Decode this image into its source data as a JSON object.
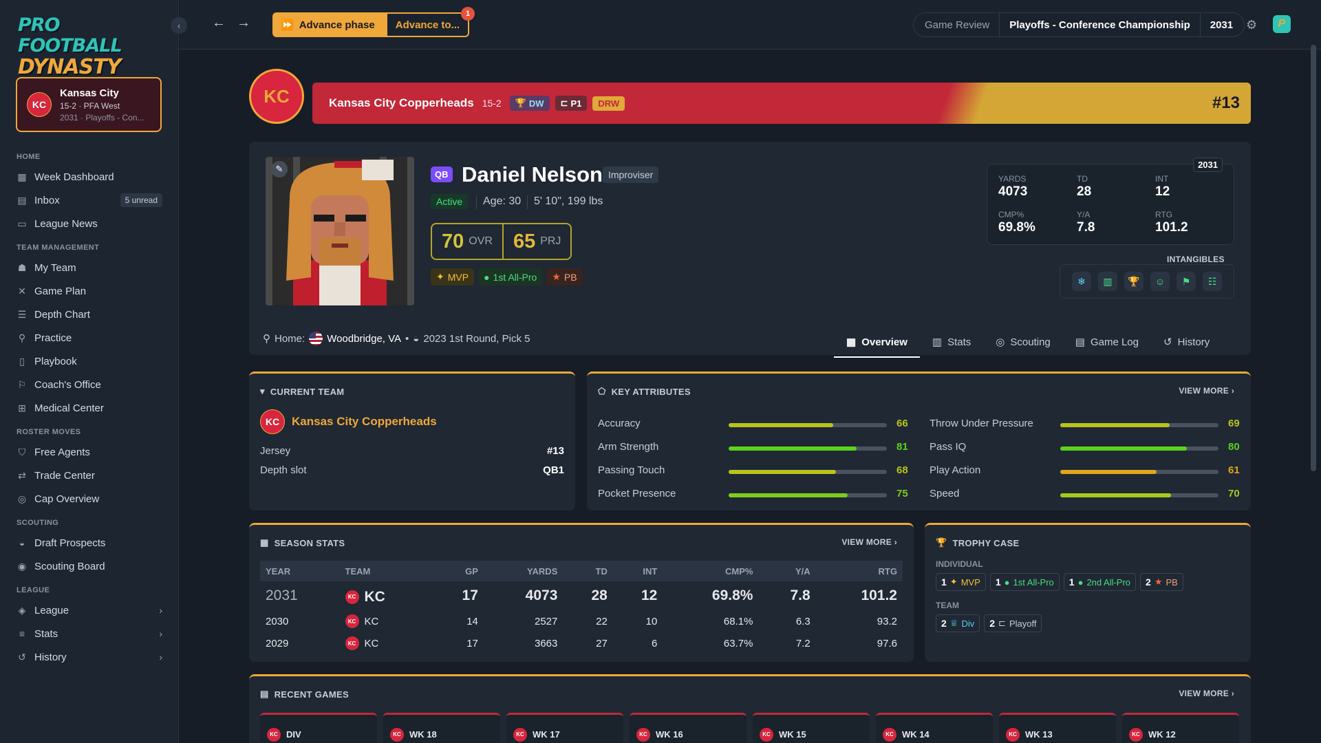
{
  "app": {
    "logo_line1": "PRO FOOTBALL",
    "logo_line2": "DYNASTY"
  },
  "team_card": {
    "abbr": "KC",
    "name": "Kansas City",
    "record": "15-2 · PFA West",
    "context": "2031 · Playoffs - Con..."
  },
  "nav": {
    "home": "HOME",
    "week_dashboard": "Week Dashboard",
    "inbox": "Inbox",
    "inbox_badge": "5 unread",
    "league_news": "League News",
    "team_management": "TEAM MANAGEMENT",
    "my_team": "My Team",
    "game_plan": "Game Plan",
    "depth_chart": "Depth Chart",
    "practice": "Practice",
    "playbook": "Playbook",
    "coachs_office": "Coach's Office",
    "medical_center": "Medical Center",
    "roster_moves": "ROSTER MOVES",
    "free_agents": "Free Agents",
    "trade_center": "Trade Center",
    "cap_overview": "Cap Overview",
    "scouting": "SCOUTING",
    "draft_prospects": "Draft Prospects",
    "scouting_board": "Scouting Board",
    "league_section": "LEAGUE",
    "league": "League",
    "stats": "Stats",
    "history": "History"
  },
  "topbar": {
    "advance_phase": "Advance phase",
    "advance_to": "Advance to...",
    "notif_count": "1",
    "phase_label": "Game Review",
    "phase_name": "Playoffs - Conference Championship",
    "season": "2031"
  },
  "banner": {
    "logo": "KC",
    "team": "Kansas City Copperheads",
    "record": "15-2",
    "chip_dw": "DW",
    "chip_p1": "P1",
    "chip_drw": "DRW",
    "jersey": "#13"
  },
  "player": {
    "position": "QB",
    "name": "Daniel Nelson",
    "archetype": "Improviser",
    "status": "Active",
    "age": "Age: 30",
    "height_weight": "5' 10\", 199 lbs",
    "ovr": "70",
    "ovr_label": "OVR",
    "prj": "65",
    "prj_label": "PRJ",
    "awards": [
      "MVP",
      "1st All-Pro",
      "PB"
    ],
    "home_label": "Home:",
    "hometown": "Woodbridge, VA",
    "draft": "2023 1st Round, Pick 5"
  },
  "season_box": {
    "year": "2031",
    "yards_l": "YARDS",
    "yards": "4073",
    "td_l": "TD",
    "td": "28",
    "int_l": "INT",
    "int": "12",
    "cmp_l": "CMP%",
    "cmp": "69.8%",
    "ya_l": "Y/A",
    "ya": "7.8",
    "rtg_l": "RTG",
    "rtg": "101.2"
  },
  "intangibles_label": "INTANGIBLES",
  "tabs": [
    "Overview",
    "Stats",
    "Scouting",
    "Game Log",
    "History"
  ],
  "current_team": {
    "title": "CURRENT TEAM",
    "abbr": "KC",
    "name": "Kansas City Copperheads",
    "jersey_l": "Jersey",
    "jersey": "#13",
    "depth_l": "Depth slot",
    "depth": "QB1"
  },
  "key_attributes": {
    "title": "KEY ATTRIBUTES",
    "view_more": "VIEW MORE",
    "items": [
      {
        "name": "Accuracy",
        "value": 66,
        "color": "#b8c41c"
      },
      {
        "name": "Arm Strength",
        "value": 81,
        "color": "#5bd21b"
      },
      {
        "name": "Passing Touch",
        "value": 68,
        "color": "#b8c41c"
      },
      {
        "name": "Pocket Presence",
        "value": 75,
        "color": "#7fcc1c"
      },
      {
        "name": "Throw Under Pressure",
        "value": 69,
        "color": "#b8c41c"
      },
      {
        "name": "Pass IQ",
        "value": 80,
        "color": "#5bd21b"
      },
      {
        "name": "Play Action",
        "value": 61,
        "color": "#e0a51c"
      },
      {
        "name": "Speed",
        "value": 70,
        "color": "#a8c81c"
      }
    ]
  },
  "season_stats": {
    "title": "SEASON STATS",
    "view_more": "VIEW MORE",
    "headers": [
      "YEAR",
      "TEAM",
      "GP",
      "YARDS",
      "TD",
      "INT",
      "CMP%",
      "Y/A",
      "RTG"
    ],
    "rows": [
      [
        "2031",
        "KC",
        "17",
        "4073",
        "28",
        "12",
        "69.8%",
        "7.8",
        "101.2"
      ],
      [
        "2030",
        "KC",
        "14",
        "2527",
        "22",
        "10",
        "68.1%",
        "6.3",
        "93.2"
      ],
      [
        "2029",
        "KC",
        "17",
        "3663",
        "27",
        "6",
        "63.7%",
        "7.2",
        "97.6"
      ]
    ]
  },
  "trophy_case": {
    "title": "TROPHY CASE",
    "individual": "INDIVIDUAL",
    "team": "TEAM",
    "ind": [
      {
        "n": "1",
        "l": "MVP"
      },
      {
        "n": "1",
        "l": "1st All-Pro"
      },
      {
        "n": "1",
        "l": "2nd All-Pro"
      },
      {
        "n": "2",
        "l": "PB"
      }
    ],
    "tm": [
      {
        "n": "2",
        "l": "Div"
      },
      {
        "n": "2",
        "l": "Playoff"
      }
    ]
  },
  "recent_games": {
    "title": "RECENT GAMES",
    "view_more": "VIEW MORE",
    "weeks": [
      "DIV",
      "WK 18",
      "WK 17",
      "WK 16",
      "WK 15",
      "WK 14",
      "WK 13",
      "WK 12"
    ]
  },
  "colors": {
    "accent": "#f0a83a",
    "kc_red": "#d7263d",
    "teal": "#2ec4b6"
  }
}
